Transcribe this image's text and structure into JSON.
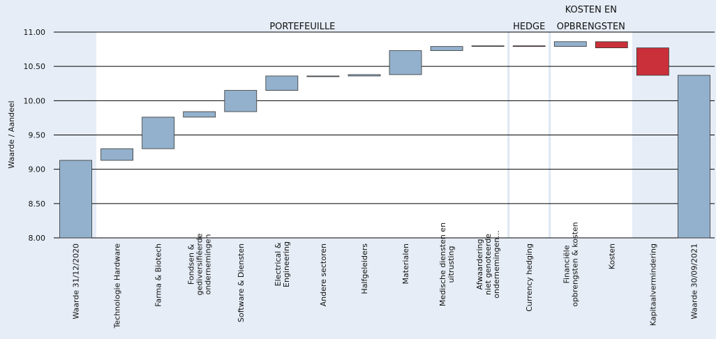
{
  "chart_data": {
    "type": "waterfall",
    "y_label": "Waarde  / Aandeel",
    "categories": [
      "Waarde 31/12/2020",
      "Technologie Hardware",
      "Farma & Biotech",
      "Fondsen &\ngediversifiëerde\nondernemingen",
      "Software & Diensten",
      "Electrical &\nEngineering",
      "Andere sectoren",
      "Halfgeleiders",
      "Materialen",
      "Medische diensten en\nuitrusting",
      "Afwaardering\nniet genoteerde\nondernemingen...",
      "Currency hedging",
      "Financiële\nopbrengsten & kosten",
      "Kosten",
      "Kapitaalvermindering",
      "Waarde 30/09/2021"
    ],
    "values": [
      9.13,
      0.17,
      0.46,
      0.08,
      0.31,
      0.21,
      0.0,
      0.02,
      0.35,
      0.06,
      0.01,
      -0.01,
      0.07,
      -0.09,
      -0.4,
      10.37
    ],
    "measures": [
      "absolute",
      "relative",
      "relative",
      "relative",
      "relative",
      "relative",
      "relative",
      "relative",
      "relative",
      "relative",
      "relative",
      "relative",
      "relative",
      "relative",
      "relative",
      "total"
    ],
    "colors": {
      "total": "#93b1cc",
      "increase": "#93b1cc",
      "decrease": "#c9303a"
    },
    "sections": [
      {
        "label": "PORTEFEUILLE",
        "from": 1,
        "to": 10
      },
      {
        "label": "HEDGE",
        "from": 11,
        "to": 11
      },
      {
        "label": "KOSTEN EN\nOPBRENGSTEN",
        "from": 12,
        "to": 13
      }
    ],
    "ylim": [
      8,
      11
    ],
    "yticks": [
      {
        "value": 8,
        "label": "8.00"
      },
      {
        "value": 8.5,
        "label": "8.50"
      },
      {
        "value": 9,
        "label": "9.00"
      },
      {
        "value": 9.5,
        "label": "9.50"
      },
      {
        "value": 10,
        "label": "10.00"
      },
      {
        "value": 10.5,
        "label": "10.50"
      },
      {
        "value": 11,
        "label": "11.00"
      }
    ],
    "grid": true
  }
}
